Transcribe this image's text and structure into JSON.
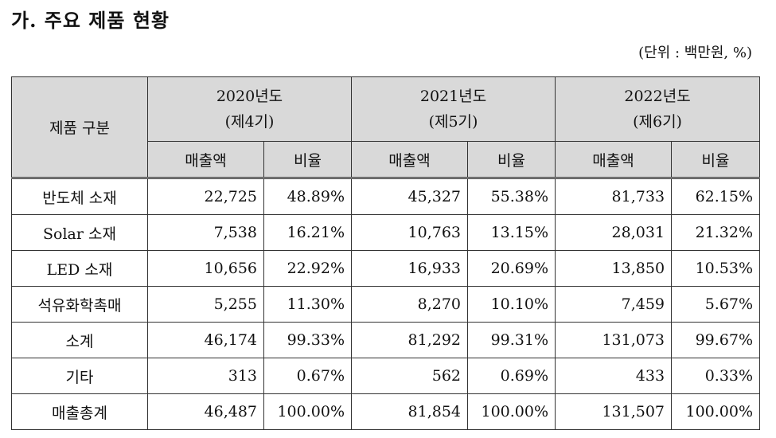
{
  "title": "가. 주요 제품 현황",
  "unit": "(단위 : 백만원, %)",
  "header": {
    "category": "제품 구분",
    "years": [
      {
        "year": "2020년도",
        "period": "(제4기)"
      },
      {
        "year": "2021년도",
        "period": "(제5기)"
      },
      {
        "year": "2022년도",
        "period": "(제6기)"
      }
    ],
    "sales_label": "매출액",
    "ratio_label": "비율"
  },
  "rows": [
    {
      "category": "반도체 소재",
      "values": [
        "22,725",
        "48.89%",
        "45,327",
        "55.38%",
        "81,733",
        "62.15%"
      ]
    },
    {
      "category": "Solar 소재",
      "values": [
        "7,538",
        "16.21%",
        "10,763",
        "13.15%",
        "28,031",
        "21.32%"
      ]
    },
    {
      "category": "LED 소재",
      "values": [
        "10,656",
        "22.92%",
        "16,933",
        "20.69%",
        "13,850",
        "10.53%"
      ]
    },
    {
      "category": "석유화학촉매",
      "values": [
        "5,255",
        "11.30%",
        "8,270",
        "10.10%",
        "7,459",
        "5.67%"
      ]
    },
    {
      "category": "소계",
      "values": [
        "46,174",
        "99.33%",
        "81,292",
        "99.31%",
        "131,073",
        "99.67%"
      ]
    },
    {
      "category": "기타",
      "values": [
        "313",
        "0.67%",
        "562",
        "0.69%",
        "433",
        "0.33%"
      ]
    },
    {
      "category": "매출총계",
      "values": [
        "46,487",
        "100.00%",
        "81,854",
        "100.00%",
        "131,507",
        "100.00%"
      ]
    }
  ]
}
